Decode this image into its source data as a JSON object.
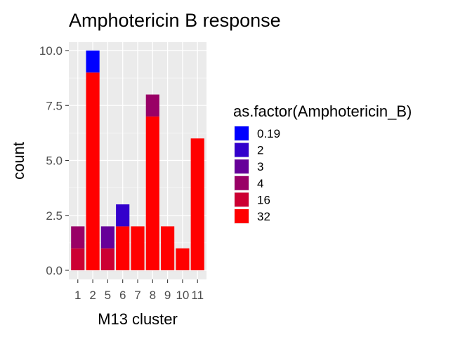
{
  "chart_data": {
    "type": "bar",
    "stacked": true,
    "title": "Amphotericin B response",
    "xlabel": "M13 cluster",
    "ylabel": "count",
    "categories": [
      "1",
      "2",
      "5",
      "6",
      "7",
      "8",
      "9",
      "10",
      "11"
    ],
    "ylim": [
      0,
      10.4
    ],
    "yticks": [
      0.0,
      2.5,
      5.0,
      7.5,
      10.0
    ],
    "ytick_labels": [
      "0.0",
      "2.5",
      "5.0",
      "7.5",
      "10.0"
    ],
    "grid": true,
    "legend": {
      "title": "as.factor(Amphotericin_B)",
      "position": "right"
    },
    "series": [
      {
        "name": "0.19",
        "color": "#0000FF",
        "values": [
          0,
          1,
          0,
          0,
          0,
          0,
          0,
          0,
          0
        ]
      },
      {
        "name": "2",
        "color": "#3300CC",
        "values": [
          0,
          0,
          0,
          1,
          0,
          0,
          0,
          0,
          0
        ]
      },
      {
        "name": "3",
        "color": "#660099",
        "values": [
          0,
          0,
          1,
          0,
          0,
          0,
          0,
          0,
          0
        ]
      },
      {
        "name": "4",
        "color": "#990066",
        "values": [
          1,
          0,
          0,
          0,
          0,
          1,
          0,
          0,
          0
        ]
      },
      {
        "name": "16",
        "color": "#CC0033",
        "values": [
          1,
          0,
          1,
          0,
          0,
          0,
          0,
          0,
          0
        ]
      },
      {
        "name": "32",
        "color": "#FF0000",
        "values": [
          0,
          9,
          0,
          2,
          2,
          7,
          2,
          1,
          6
        ]
      }
    ]
  }
}
